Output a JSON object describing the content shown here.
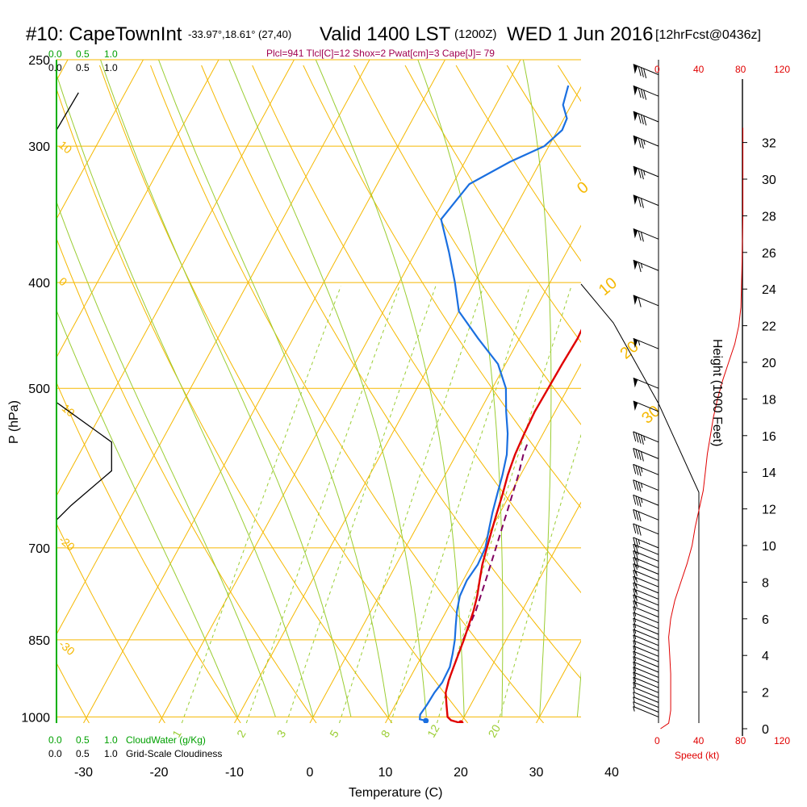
{
  "header": {
    "station": "#10: CapeTownInt",
    "coords": "-33.97°,18.61° (27,40)",
    "valid": "Valid 1400 LST",
    "zulu": "(1200Z)",
    "date": "WED 1 Jun 2016",
    "forecast": "[12hrFcst@0436z]",
    "indices": "Plcl=941 Tlcl[C]=12 Shox=2 Pwat[cm]=3 Cape[J]= 79"
  },
  "cloud_scale": {
    "water_ticks": [
      "0.0",
      "0.5",
      "1.0"
    ],
    "cover_ticks": [
      "0.0",
      "0.5",
      "1.0"
    ],
    "water_label": "CloudWater (g/Kg)",
    "cover_label": "Grid-Scale Cloudiness"
  },
  "speed_axis": {
    "ticks": [
      "0",
      "40",
      "80",
      "120"
    ],
    "label": "Speed (kt)"
  },
  "colors": {
    "isotherm": "#f5b800",
    "dry_adiabat": "#f5b800",
    "moist_adiabat": "#9acd32",
    "mixing_ratio": "#9acd32",
    "temperature": "#e00000",
    "dewpoint": "#1a6fe0",
    "parcel": "#800060",
    "cloud_water": "#00a000",
    "speed": "#e00000",
    "indices_text": "#a00050"
  },
  "chart_data": {
    "type": "line",
    "title": "#10: CapeTownInt",
    "xlabel": "Temperature (C)",
    "ylabel": "P (hPa)",
    "y2label": "Height (1000 Feet)",
    "x_ticks": [
      -30,
      -20,
      -10,
      0,
      10,
      20,
      30,
      40
    ],
    "p_ticks": [
      250,
      300,
      400,
      500,
      700,
      850,
      1000
    ],
    "height_ticks": [
      0,
      2,
      4,
      6,
      8,
      10,
      12,
      14,
      16,
      18,
      20,
      22,
      24,
      26,
      28,
      30,
      32
    ],
    "isotherm_labels": [
      "0",
      "10",
      "20",
      "30"
    ],
    "dry_adiabat_labels": [
      "10",
      "0",
      "-10",
      "-20",
      "-30"
    ],
    "mixing_ratio_labels": [
      "1",
      "2",
      "3",
      "5",
      "8",
      "12",
      "20"
    ],
    "temperature_series": [
      {
        "p": 1013,
        "t": 20.0
      },
      {
        "p": 1007,
        "t": 18.5
      },
      {
        "p": 1000,
        "t": 17.8
      },
      {
        "p": 975,
        "t": 16.8
      },
      {
        "p": 950,
        "t": 15.8
      },
      {
        "p": 925,
        "t": 15.3
      },
      {
        "p": 900,
        "t": 15.0
      },
      {
        "p": 875,
        "t": 14.7
      },
      {
        "p": 850,
        "t": 14.4
      },
      {
        "p": 825,
        "t": 14.0
      },
      {
        "p": 800,
        "t": 13.6
      },
      {
        "p": 775,
        "t": 13.0
      },
      {
        "p": 750,
        "t": 12.2
      },
      {
        "p": 725,
        "t": 11.4
      },
      {
        "p": 700,
        "t": 10.8
      },
      {
        "p": 675,
        "t": 10.2
      },
      {
        "p": 650,
        "t": 9.6
      },
      {
        "p": 625,
        "t": 9.0
      },
      {
        "p": 600,
        "t": 8.3
      },
      {
        "p": 575,
        "t": 7.8
      },
      {
        "p": 550,
        "t": 7.5
      },
      {
        "p": 525,
        "t": 7.3
      },
      {
        "p": 500,
        "t": 7.4
      },
      {
        "p": 475,
        "t": 7.5
      },
      {
        "p": 450,
        "t": 7.7
      },
      {
        "p": 425,
        "t": 7.4
      },
      {
        "p": 400,
        "t": 6.2
      },
      {
        "p": 375,
        "t": 4.8
      },
      {
        "p": 350,
        "t": 2.8
      },
      {
        "p": 325,
        "t": 0.8
      },
      {
        "p": 300,
        "t": -1.0
      },
      {
        "p": 287,
        "t": -2.2
      },
      {
        "p": 275,
        "t": -3.2
      },
      {
        "p": 264,
        "t": -4.2
      }
    ],
    "dewpoint_series": [
      {
        "p": 1008,
        "t": 15.2
      },
      {
        "p": 1005,
        "t": 14.3
      },
      {
        "p": 995,
        "t": 14.0
      },
      {
        "p": 975,
        "t": 14.2
      },
      {
        "p": 950,
        "t": 14.3
      },
      {
        "p": 930,
        "t": 14.6
      },
      {
        "p": 900,
        "t": 14.5
      },
      {
        "p": 875,
        "t": 13.9
      },
      {
        "p": 850,
        "t": 13.2
      },
      {
        "p": 825,
        "t": 12.3
      },
      {
        "p": 800,
        "t": 11.4
      },
      {
        "p": 775,
        "t": 10.7
      },
      {
        "p": 750,
        "t": 10.5
      },
      {
        "p": 725,
        "t": 10.8
      },
      {
        "p": 700,
        "t": 10.6
      },
      {
        "p": 675,
        "t": 9.8
      },
      {
        "p": 650,
        "t": 9.0
      },
      {
        "p": 625,
        "t": 8.3
      },
      {
        "p": 600,
        "t": 7.6
      },
      {
        "p": 575,
        "t": 6.7
      },
      {
        "p": 550,
        "t": 5.3
      },
      {
        "p": 525,
        "t": 3.5
      },
      {
        "p": 500,
        "t": 1.8
      },
      {
        "p": 475,
        "t": -1.0
      },
      {
        "p": 450,
        "t": -5.5
      },
      {
        "p": 425,
        "t": -10.0
      },
      {
        "p": 400,
        "t": -12.6
      },
      {
        "p": 375,
        "t": -15.6
      },
      {
        "p": 350,
        "t": -19.0
      },
      {
        "p": 325,
        "t": -17.8
      },
      {
        "p": 310,
        "t": -14.0
      },
      {
        "p": 300,
        "t": -10.6
      },
      {
        "p": 290,
        "t": -9.4
      },
      {
        "p": 283,
        "t": -9.6
      },
      {
        "p": 275,
        "t": -11.1
      },
      {
        "p": 264,
        "t": -11.8
      }
    ],
    "parcel_series": [
      {
        "p": 850,
        "t": 14.3
      },
      {
        "p": 800,
        "t": 13.9
      },
      {
        "p": 750,
        "t": 13.0
      },
      {
        "p": 700,
        "t": 12.0
      },
      {
        "p": 650,
        "t": 10.9
      },
      {
        "p": 600,
        "t": 9.7
      },
      {
        "p": 575,
        "t": 8.9
      },
      {
        "p": 560,
        "t": 8.6
      }
    ],
    "cloud_cover_profile": [
      {
        "p": 515,
        "v": 0.0
      },
      {
        "p": 560,
        "v": 0.75
      },
      {
        "p": 595,
        "v": 0.75
      },
      {
        "p": 640,
        "v": 0.2
      },
      {
        "p": 660,
        "v": 0.0
      }
    ],
    "cloud_cover_top": [
      {
        "p": 290,
        "v": 0.0
      },
      {
        "p": 268,
        "v": 0.3
      }
    ],
    "wind_speed_profile": [
      {
        "h": 0.0,
        "kt": 2
      },
      {
        "h": 0.3,
        "kt": 10
      },
      {
        "h": 1.0,
        "kt": 12
      },
      {
        "h": 2.0,
        "kt": 12
      },
      {
        "h": 3.0,
        "kt": 12
      },
      {
        "h": 4.0,
        "kt": 11
      },
      {
        "h": 5.0,
        "kt": 10
      },
      {
        "h": 6.0,
        "kt": 12
      },
      {
        "h": 7.0,
        "kt": 16
      },
      {
        "h": 8.0,
        "kt": 22
      },
      {
        "h": 9.0,
        "kt": 28
      },
      {
        "h": 10.0,
        "kt": 33
      },
      {
        "h": 11.0,
        "kt": 36
      },
      {
        "h": 12.0,
        "kt": 40
      },
      {
        "h": 13.0,
        "kt": 44
      },
      {
        "h": 14.0,
        "kt": 46
      },
      {
        "h": 15.0,
        "kt": 48
      },
      {
        "h": 16.0,
        "kt": 51
      },
      {
        "h": 17.0,
        "kt": 54
      },
      {
        "h": 18.0,
        "kt": 58
      },
      {
        "h": 19.0,
        "kt": 63
      },
      {
        "h": 20.0,
        "kt": 69
      },
      {
        "h": 21.0,
        "kt": 75
      },
      {
        "h": 22.0,
        "kt": 79
      },
      {
        "h": 23.0,
        "kt": 81
      },
      {
        "h": 25.0,
        "kt": 82
      },
      {
        "h": 28.0,
        "kt": 83
      },
      {
        "h": 31.0,
        "kt": 83
      },
      {
        "h": 32.8,
        "kt": 83
      }
    ],
    "wind_barbs": [
      {
        "p": 1000,
        "kt": 5
      },
      {
        "p": 990,
        "kt": 5
      },
      {
        "p": 980,
        "kt": 5
      },
      {
        "p": 970,
        "kt": 5
      },
      {
        "p": 960,
        "kt": 5
      },
      {
        "p": 950,
        "kt": 5
      },
      {
        "p": 940,
        "kt": 10
      },
      {
        "p": 930,
        "kt": 10
      },
      {
        "p": 920,
        "kt": 10
      },
      {
        "p": 910,
        "kt": 10
      },
      {
        "p": 900,
        "kt": 10
      },
      {
        "p": 890,
        "kt": 10
      },
      {
        "p": 880,
        "kt": 10
      },
      {
        "p": 870,
        "kt": 10
      },
      {
        "p": 860,
        "kt": 10
      },
      {
        "p": 850,
        "kt": 10
      },
      {
        "p": 840,
        "kt": 10
      },
      {
        "p": 830,
        "kt": 10
      },
      {
        "p": 820,
        "kt": 10
      },
      {
        "p": 810,
        "kt": 10
      },
      {
        "p": 800,
        "kt": 15
      },
      {
        "p": 790,
        "kt": 15
      },
      {
        "p": 780,
        "kt": 15
      },
      {
        "p": 770,
        "kt": 15
      },
      {
        "p": 760,
        "kt": 15
      },
      {
        "p": 750,
        "kt": 15
      },
      {
        "p": 740,
        "kt": 15
      },
      {
        "p": 730,
        "kt": 20
      },
      {
        "p": 720,
        "kt": 20
      },
      {
        "p": 710,
        "kt": 20
      },
      {
        "p": 700,
        "kt": 25
      },
      {
        "p": 680,
        "kt": 30
      },
      {
        "p": 660,
        "kt": 30
      },
      {
        "p": 640,
        "kt": 35
      },
      {
        "p": 620,
        "kt": 35
      },
      {
        "p": 600,
        "kt": 35
      },
      {
        "p": 580,
        "kt": 40
      },
      {
        "p": 560,
        "kt": 45
      },
      {
        "p": 525,
        "kt": 50
      },
      {
        "p": 500,
        "kt": 50
      },
      {
        "p": 460,
        "kt": 55
      },
      {
        "p": 420,
        "kt": 60
      },
      {
        "p": 390,
        "kt": 65
      },
      {
        "p": 365,
        "kt": 70
      },
      {
        "p": 340,
        "kt": 70
      },
      {
        "p": 320,
        "kt": 75
      },
      {
        "p": 300,
        "kt": 75
      },
      {
        "p": 285,
        "kt": 80
      },
      {
        "p": 270,
        "kt": 80
      },
      {
        "p": 258,
        "kt": 80
      }
    ]
  }
}
